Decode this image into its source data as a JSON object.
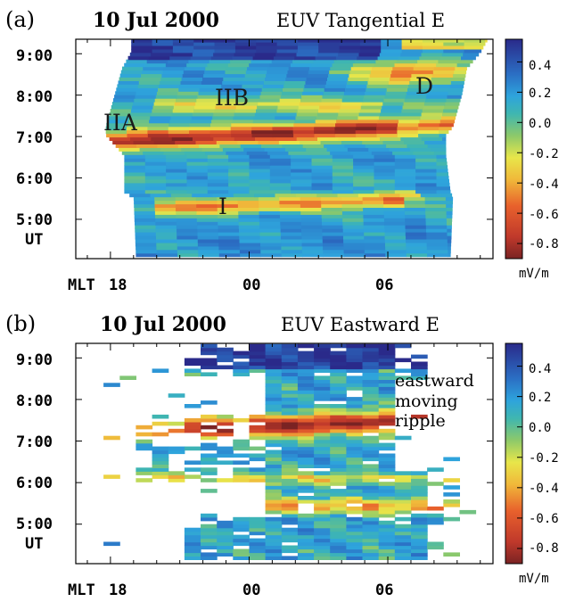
{
  "chart_data": [
    {
      "type": "heatmap",
      "panel_label": "(a)",
      "title_date": "10 Jul 2000",
      "title_quantity": "EUV Tangential E",
      "xlabel_prefix": "MLT",
      "ylabel": "UT",
      "x_ticklabels": [
        "18",
        "00",
        "06"
      ],
      "y_ticklabels": [
        "5:00",
        "6:00",
        "7:00",
        "8:00",
        "9:00"
      ],
      "x_hours_mlt": [
        18,
        24,
        30
      ],
      "y_hours_ut": [
        5,
        6,
        7,
        8,
        9
      ],
      "colorbar": {
        "ticklabels": [
          "0.4",
          "0.2",
          "0.0",
          "-0.2",
          "-0.4",
          "-0.6",
          "-0.8"
        ],
        "values": [
          0.4,
          0.2,
          0.0,
          -0.2,
          -0.4,
          -0.6,
          -0.8
        ],
        "range": [
          -0.9,
          0.55
        ],
        "unit": "mV/m"
      },
      "annotations": [
        {
          "text": "IIA",
          "mlt": 18.6,
          "ut": 7.15
        },
        {
          "text": "IIB",
          "mlt": 22.0,
          "ut": 7.75
        },
        {
          "text": "D",
          "mlt": 31.2,
          "ut": 8.2
        },
        {
          "text": "I",
          "mlt": 22.3,
          "ut": 5.2
        }
      ],
      "coverage": {
        "description": "Data swath edges (MLT hours) by UT",
        "ut": [
          4.1,
          5.5,
          5.6,
          6.5,
          7.0,
          7.2,
          8.0,
          8.6,
          9.0,
          9.3
        ],
        "left_mlt": [
          19.1,
          19.0,
          18.6,
          18.6,
          17.8,
          17.8,
          18.2,
          18.5,
          18.9,
          18.9
        ],
        "right_mlt": [
          32.7,
          32.8,
          32.7,
          32.5,
          32.5,
          32.8,
          33.2,
          33.4,
          34.0,
          34.3
        ]
      },
      "features": [
        {
          "name": "IIA/IIB westward-tilted band",
          "ut_center": 7.05,
          "value": -0.8
        },
        {
          "name": "I band",
          "ut_center": 5.35,
          "value": -0.5
        },
        {
          "name": "D band",
          "ut_center": 8.6,
          "value": -0.55
        },
        {
          "name": "top band",
          "ut_center": 9.1,
          "value": 0.45
        }
      ]
    },
    {
      "type": "heatmap",
      "panel_label": "(b)",
      "title_date": "10 Jul 2000",
      "title_quantity": "EUV Eastward E",
      "xlabel_prefix": "MLT",
      "ylabel": "UT",
      "x_ticklabels": [
        "18",
        "00",
        "06"
      ],
      "y_ticklabels": [
        "5:00",
        "6:00",
        "7:00",
        "8:00",
        "9:00"
      ],
      "x_hours_mlt": [
        18,
        24,
        30
      ],
      "y_hours_ut": [
        5,
        6,
        7,
        8,
        9
      ],
      "colorbar": {
        "ticklabels": [
          "0.4",
          "0.2",
          "0.0",
          "-0.2",
          "-0.4",
          "-0.6",
          "-0.8"
        ],
        "values": [
          0.4,
          0.2,
          0.0,
          -0.2,
          -0.4,
          -0.6,
          -0.8
        ],
        "range": [
          -0.9,
          0.55
        ],
        "unit": "mV/m"
      },
      "annotations": [
        {
          "text": "eastward",
          "mlt": 30.4,
          "ut": 8.4
        },
        {
          "text": "moving",
          "mlt": 30.4,
          "ut": 7.95
        },
        {
          "text": "ripple",
          "mlt": 30.4,
          "ut": 7.5
        }
      ],
      "features": [
        {
          "name": "eastward moving ripple",
          "ut_center": 7.4,
          "value": -0.8
        },
        {
          "name": "band near 5:00",
          "ut_center": 5.4,
          "value": -0.45
        }
      ]
    }
  ]
}
